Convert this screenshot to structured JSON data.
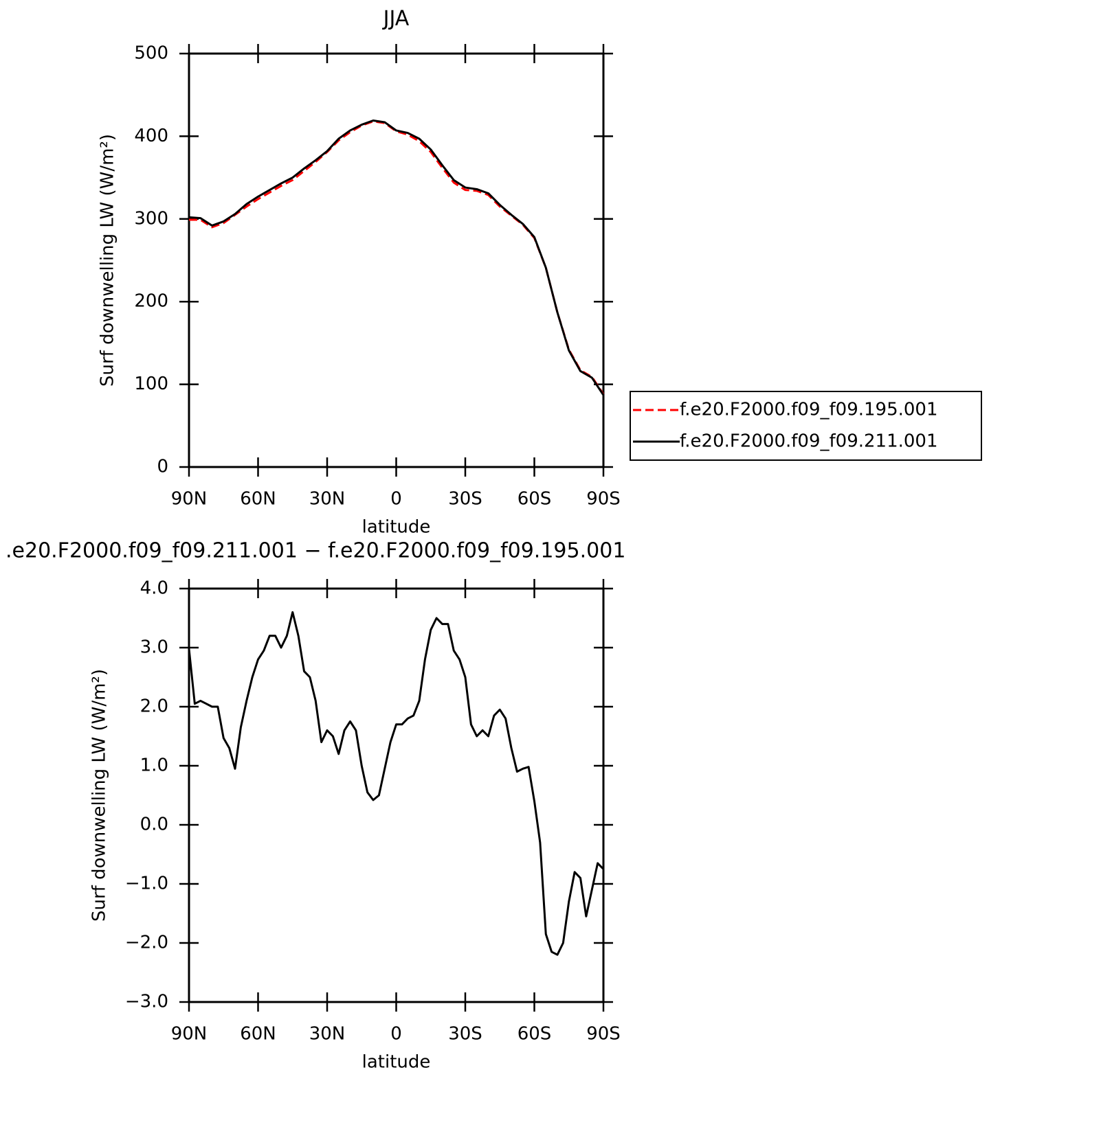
{
  "chart_data": [
    {
      "type": "line",
      "title": "JJA",
      "xlabel": "latitude",
      "ylabel": "Surf downwelling LW (W/m²)",
      "x": [
        90,
        85,
        80,
        75,
        70,
        65,
        60,
        55,
        50,
        45,
        40,
        35,
        30,
        25,
        20,
        15,
        10,
        5,
        0,
        -5,
        -10,
        -15,
        -20,
        -25,
        -30,
        -35,
        -40,
        -45,
        -50,
        -55,
        -60,
        -65,
        -70,
        -75,
        -80,
        -85,
        -90
      ],
      "series": [
        {
          "name": "f.e20.F2000.f09_f09.195.001",
          "color": "#ff0000",
          "linestyle": "dashed",
          "values": [
            299,
            299,
            290,
            295,
            305,
            315,
            324,
            332,
            340,
            347,
            358,
            369,
            381,
            395,
            405,
            413,
            418,
            416,
            406,
            402,
            394,
            381,
            362,
            344,
            335,
            334,
            329,
            315,
            304,
            293,
            277,
            241,
            187,
            142,
            117,
            109,
            88
          ]
        },
        {
          "name": "f.e20.F2000.f09_f09.211.001",
          "color": "#000000",
          "linestyle": "solid",
          "values": [
            302,
            301,
            292,
            297,
            306,
            318,
            327,
            335,
            343,
            350,
            361,
            371,
            382,
            397,
            407,
            414,
            419,
            417,
            407,
            404,
            397,
            384,
            365,
            347,
            338,
            336,
            331,
            317,
            305,
            294,
            278,
            241,
            187,
            141,
            116,
            108,
            87
          ]
        }
      ],
      "xlim": [
        90,
        -90
      ],
      "xticks": [
        {
          "value": 90,
          "label": "90N"
        },
        {
          "value": 60,
          "label": "60N"
        },
        {
          "value": 30,
          "label": "30N"
        },
        0,
        {
          "value": -30,
          "label": "30S"
        },
        {
          "value": -60,
          "label": "60S"
        },
        {
          "value": -90,
          "label": "90S"
        }
      ],
      "ylim": [
        0,
        500
      ],
      "yticks": [
        0,
        100,
        200,
        300,
        400,
        500
      ],
      "legend": "right"
    },
    {
      "type": "line",
      "title": ".e20.F2000.f09_f09.211.001 − f.e20.F2000.f09_f09.195.001",
      "xlabel": "latitude",
      "ylabel": "Surf downwelling LW (W/m²)",
      "x": [
        90,
        87.5,
        85,
        82.5,
        80,
        77.5,
        75,
        72.5,
        70,
        67.5,
        65,
        62.5,
        60,
        57.5,
        55,
        52.5,
        50,
        47.5,
        45,
        42.5,
        40,
        37.5,
        35,
        32.5,
        30,
        27.5,
        25,
        22.5,
        20,
        17.5,
        15,
        12.5,
        10,
        7.5,
        5,
        2.5,
        0,
        -2.5,
        -5,
        -7.5,
        -10,
        -12.5,
        -15,
        -17.5,
        -20,
        -22.5,
        -25,
        -27.5,
        -30,
        -32.5,
        -35,
        -37.5,
        -40,
        -42.5,
        -45,
        -47.5,
        -50,
        -52.5,
        -55,
        -57.5,
        -60,
        -62.5,
        -65,
        -67.5,
        -70,
        -72.5,
        -75,
        -77.5,
        -80,
        -82.5,
        -85,
        -87.5,
        -90
      ],
      "values": [
        2.98,
        2.05,
        2.1,
        2.05,
        2.0,
        2.0,
        1.47,
        1.3,
        0.95,
        1.65,
        2.1,
        2.5,
        2.8,
        2.95,
        3.2,
        3.2,
        3.0,
        3.2,
        3.6,
        3.2,
        2.6,
        2.5,
        2.1,
        1.4,
        1.6,
        1.5,
        1.2,
        1.6,
        1.75,
        1.6,
        1.0,
        0.55,
        0.42,
        0.5,
        0.95,
        1.4,
        1.7,
        1.7,
        1.8,
        1.85,
        2.1,
        2.8,
        3.3,
        3.5,
        3.4,
        3.4,
        2.95,
        2.8,
        2.5,
        1.7,
        1.5,
        1.6,
        1.5,
        1.85,
        1.95,
        1.8,
        1.3,
        0.9,
        0.95,
        0.98,
        0.4,
        -0.3,
        -1.85,
        -2.15,
        -2.2,
        -2.0,
        -1.3,
        -0.8,
        -0.9,
        -1.55,
        -1.1,
        -0.65,
        -0.75
      ],
      "color": "#000000",
      "linestyle": "solid",
      "xlim": [
        90,
        -90
      ],
      "xticks": [
        {
          "value": 90,
          "label": "90N"
        },
        {
          "value": 60,
          "label": "60N"
        },
        {
          "value": 30,
          "label": "30N"
        },
        0,
        {
          "value": -30,
          "label": "30S"
        },
        {
          "value": -60,
          "label": "60S"
        },
        {
          "value": -90,
          "label": "90S"
        }
      ],
      "ylim": [
        -3,
        4
      ],
      "yticks": [
        {
          "value": -3,
          "label": "−3.0"
        },
        {
          "value": -2,
          "label": "−2.0"
        },
        {
          "value": -1,
          "label": "−1.0"
        },
        {
          "value": 0,
          "label": "0.0"
        },
        {
          "value": 1,
          "label": "1.0"
        },
        {
          "value": 2,
          "label": "2.0"
        },
        {
          "value": 3,
          "label": "3.0"
        },
        {
          "value": 4,
          "label": "4.0"
        }
      ]
    }
  ]
}
